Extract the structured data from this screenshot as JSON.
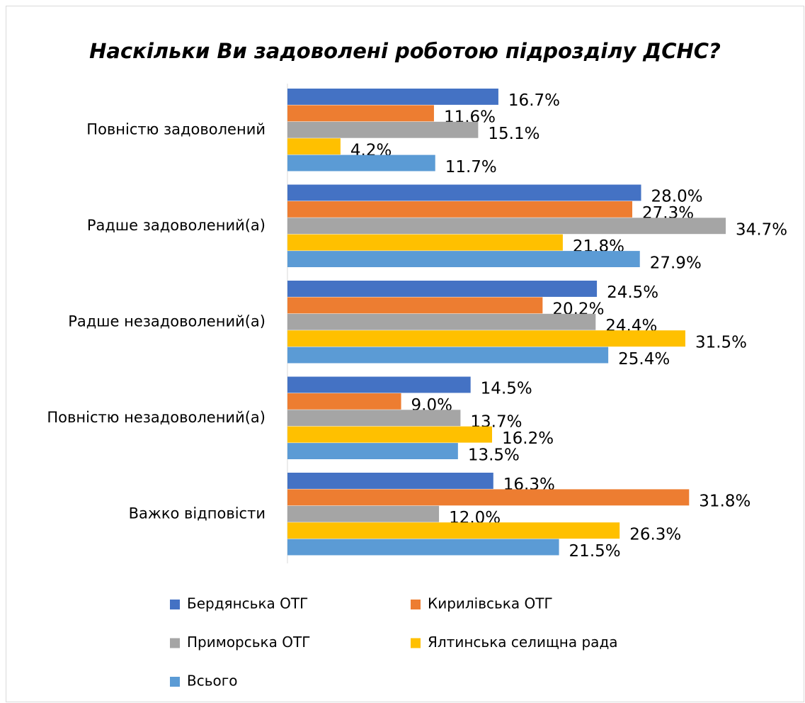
{
  "chart_data": {
    "type": "hbar",
    "title": "Наскільки Ви задоволені роботою підрозділу ДСНС?",
    "categories": [
      "Повністю задоволений",
      "Радше задоволений(а)",
      "Радше незадоволений(а)",
      "Повністю незадоволений(а)",
      "Важко відповісти"
    ],
    "series": [
      {
        "name": "Бердянська ОТГ",
        "color": "#4472c4",
        "values": [
          16.7,
          28.0,
          24.5,
          14.5,
          16.3
        ],
        "value_labels": [
          "16.7%",
          "28.0%",
          "24.5%",
          "14.5%",
          "16.3%"
        ]
      },
      {
        "name": "Кирилівська ОТГ",
        "color": "#ed7d31",
        "values": [
          11.6,
          27.3,
          20.2,
          9.0,
          31.8
        ],
        "value_labels": [
          "11.6%",
          "27.3%",
          "20.2%",
          "9.0%",
          "31.8%"
        ]
      },
      {
        "name": "Приморська ОТГ",
        "color": "#a5a5a5",
        "values": [
          15.1,
          34.7,
          24.4,
          13.7,
          12.0
        ],
        "value_labels": [
          "15.1%",
          "34.7%",
          "24.4%",
          "13.7%",
          "12.0%"
        ]
      },
      {
        "name": "Ялтинська селищна рада",
        "color": "#ffc000",
        "values": [
          4.2,
          21.8,
          31.5,
          16.2,
          26.3
        ],
        "value_labels": [
          "4.2%",
          "21.8%",
          "31.5%",
          "16.2%",
          "26.3%"
        ]
      },
      {
        "name": "Всього",
        "color": "#5b9bd5",
        "values": [
          11.7,
          27.9,
          25.4,
          13.5,
          21.5
        ],
        "value_labels": [
          "11.7%",
          "27.9%",
          "25.4%",
          "13.5%",
          "21.5%"
        ]
      }
    ],
    "xlim": [
      0,
      35
    ],
    "legend": "bottom"
  }
}
